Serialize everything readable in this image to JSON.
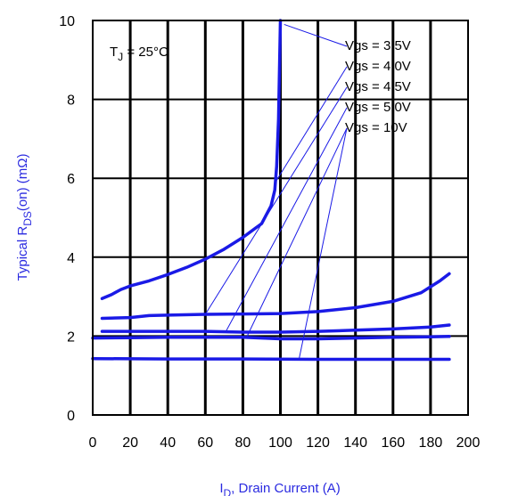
{
  "chart_data": {
    "type": "line",
    "title": "",
    "xlabel": {
      "main": "I",
      "sub": "D",
      "rest": ", Drain Current (A)"
    },
    "ylabel": {
      "pre": "Typical R",
      "sub": "DS",
      "post": "(on) (mΩ)"
    },
    "xlim": [
      0,
      200
    ],
    "ylim": [
      0,
      10
    ],
    "x_ticks": [
      "0",
      "20",
      "40",
      "60",
      "80",
      "100",
      "120",
      "140",
      "160",
      "180",
      "200"
    ],
    "y_ticks": [
      "0",
      "2",
      "4",
      "6",
      "8",
      "10"
    ],
    "grid": true,
    "annotation": {
      "main": "T",
      "sub": "J",
      "rest": " = 25°C"
    },
    "line_color": "#1a1ae6",
    "axis_label_color": "#2a2ae0",
    "series": [
      {
        "name": "Vgs = 3.5V",
        "points": [
          [
            5,
            2.95
          ],
          [
            10,
            3.05
          ],
          [
            15,
            3.18
          ],
          [
            20,
            3.27
          ],
          [
            30,
            3.4
          ],
          [
            40,
            3.56
          ],
          [
            50,
            3.74
          ],
          [
            60,
            3.95
          ],
          [
            70,
            4.2
          ],
          [
            80,
            4.5
          ],
          [
            90,
            4.85
          ],
          [
            95,
            5.3
          ],
          [
            97,
            5.7
          ],
          [
            98,
            6.3
          ],
          [
            99,
            7.5
          ],
          [
            100,
            10
          ]
        ]
      },
      {
        "name": "Vgs = 4.0V",
        "points": [
          [
            5,
            2.45
          ],
          [
            20,
            2.47
          ],
          [
            30,
            2.52
          ],
          [
            40,
            2.53
          ],
          [
            60,
            2.55
          ],
          [
            80,
            2.56
          ],
          [
            100,
            2.57
          ],
          [
            120,
            2.62
          ],
          [
            140,
            2.72
          ],
          [
            160,
            2.88
          ],
          [
            175,
            3.1
          ],
          [
            185,
            3.4
          ],
          [
            190,
            3.58
          ]
        ]
      },
      {
        "name": "Vgs = 4.5V",
        "points": [
          [
            5,
            2.12
          ],
          [
            20,
            2.12
          ],
          [
            40,
            2.12
          ],
          [
            60,
            2.12
          ],
          [
            80,
            2.1
          ],
          [
            100,
            2.1
          ],
          [
            120,
            2.12
          ],
          [
            140,
            2.15
          ],
          [
            160,
            2.18
          ],
          [
            180,
            2.23
          ],
          [
            190,
            2.28
          ]
        ]
      },
      {
        "name": "Vgs = 5.0V",
        "points": [
          [
            0,
            1.95
          ],
          [
            20,
            1.96
          ],
          [
            40,
            1.97
          ],
          [
            60,
            1.97
          ],
          [
            80,
            1.97
          ],
          [
            100,
            1.93
          ],
          [
            120,
            1.93
          ],
          [
            140,
            1.95
          ],
          [
            160,
            1.97
          ],
          [
            180,
            1.98
          ],
          [
            190,
            1.99
          ]
        ]
      },
      {
        "name": "Vgs = 10V",
        "points": [
          [
            0,
            1.43
          ],
          [
            40,
            1.42
          ],
          [
            80,
            1.42
          ],
          [
            120,
            1.41
          ],
          [
            160,
            1.41
          ],
          [
            190,
            1.41
          ]
        ]
      }
    ],
    "leaders": [
      {
        "series": 0,
        "target": [
          102,
          9.9
        ]
      },
      {
        "series": 1,
        "target": [
          98,
          5.95
        ]
      },
      {
        "series": 2,
        "target": [
          60,
          2.55
        ]
      },
      {
        "series": 3,
        "target": [
          71,
          2.12
        ]
      },
      {
        "series": 4,
        "target": [
          82,
          1.97
        ]
      },
      {
        "series": 4,
        "target": [
          110,
          1.43
        ]
      }
    ]
  }
}
